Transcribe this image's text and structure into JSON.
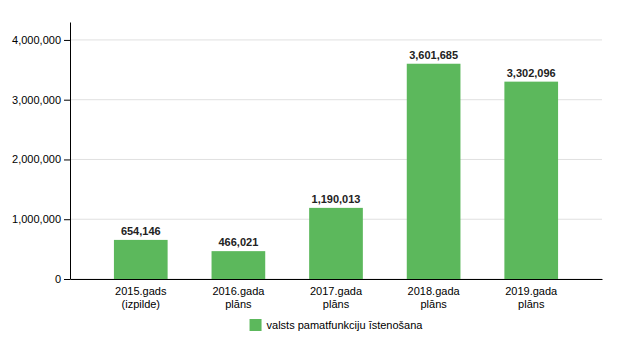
{
  "chart_data": {
    "type": "bar",
    "categories": [
      "2015.gads\n(izpilde)",
      "2016.gada\nplāns",
      "2017.gada\nplāns",
      "2018.gada\nplāns",
      "2019.gada\nplāns"
    ],
    "series": [
      {
        "name": "valsts pamatfunkciju īstenošana",
        "color": "#5cb85c",
        "values": [
          654146,
          466021,
          1190013,
          3601685,
          3302096
        ],
        "value_labels": [
          "654,146",
          "466,021",
          "1,190,013",
          "3,601,685",
          "3,302,096"
        ]
      }
    ],
    "ylim": [
      0,
      4300000
    ],
    "yticks": [
      0,
      {
        "value": 1000000,
        "label": "1,000,000"
      },
      {
        "value": 2000000,
        "label": "2,000,000"
      },
      {
        "value": 3000000,
        "label": "3,000,000"
      },
      {
        "value": 4000000,
        "label": "4,000,000"
      }
    ],
    "grid": true,
    "data_labels": true,
    "legend": "bottom"
  }
}
